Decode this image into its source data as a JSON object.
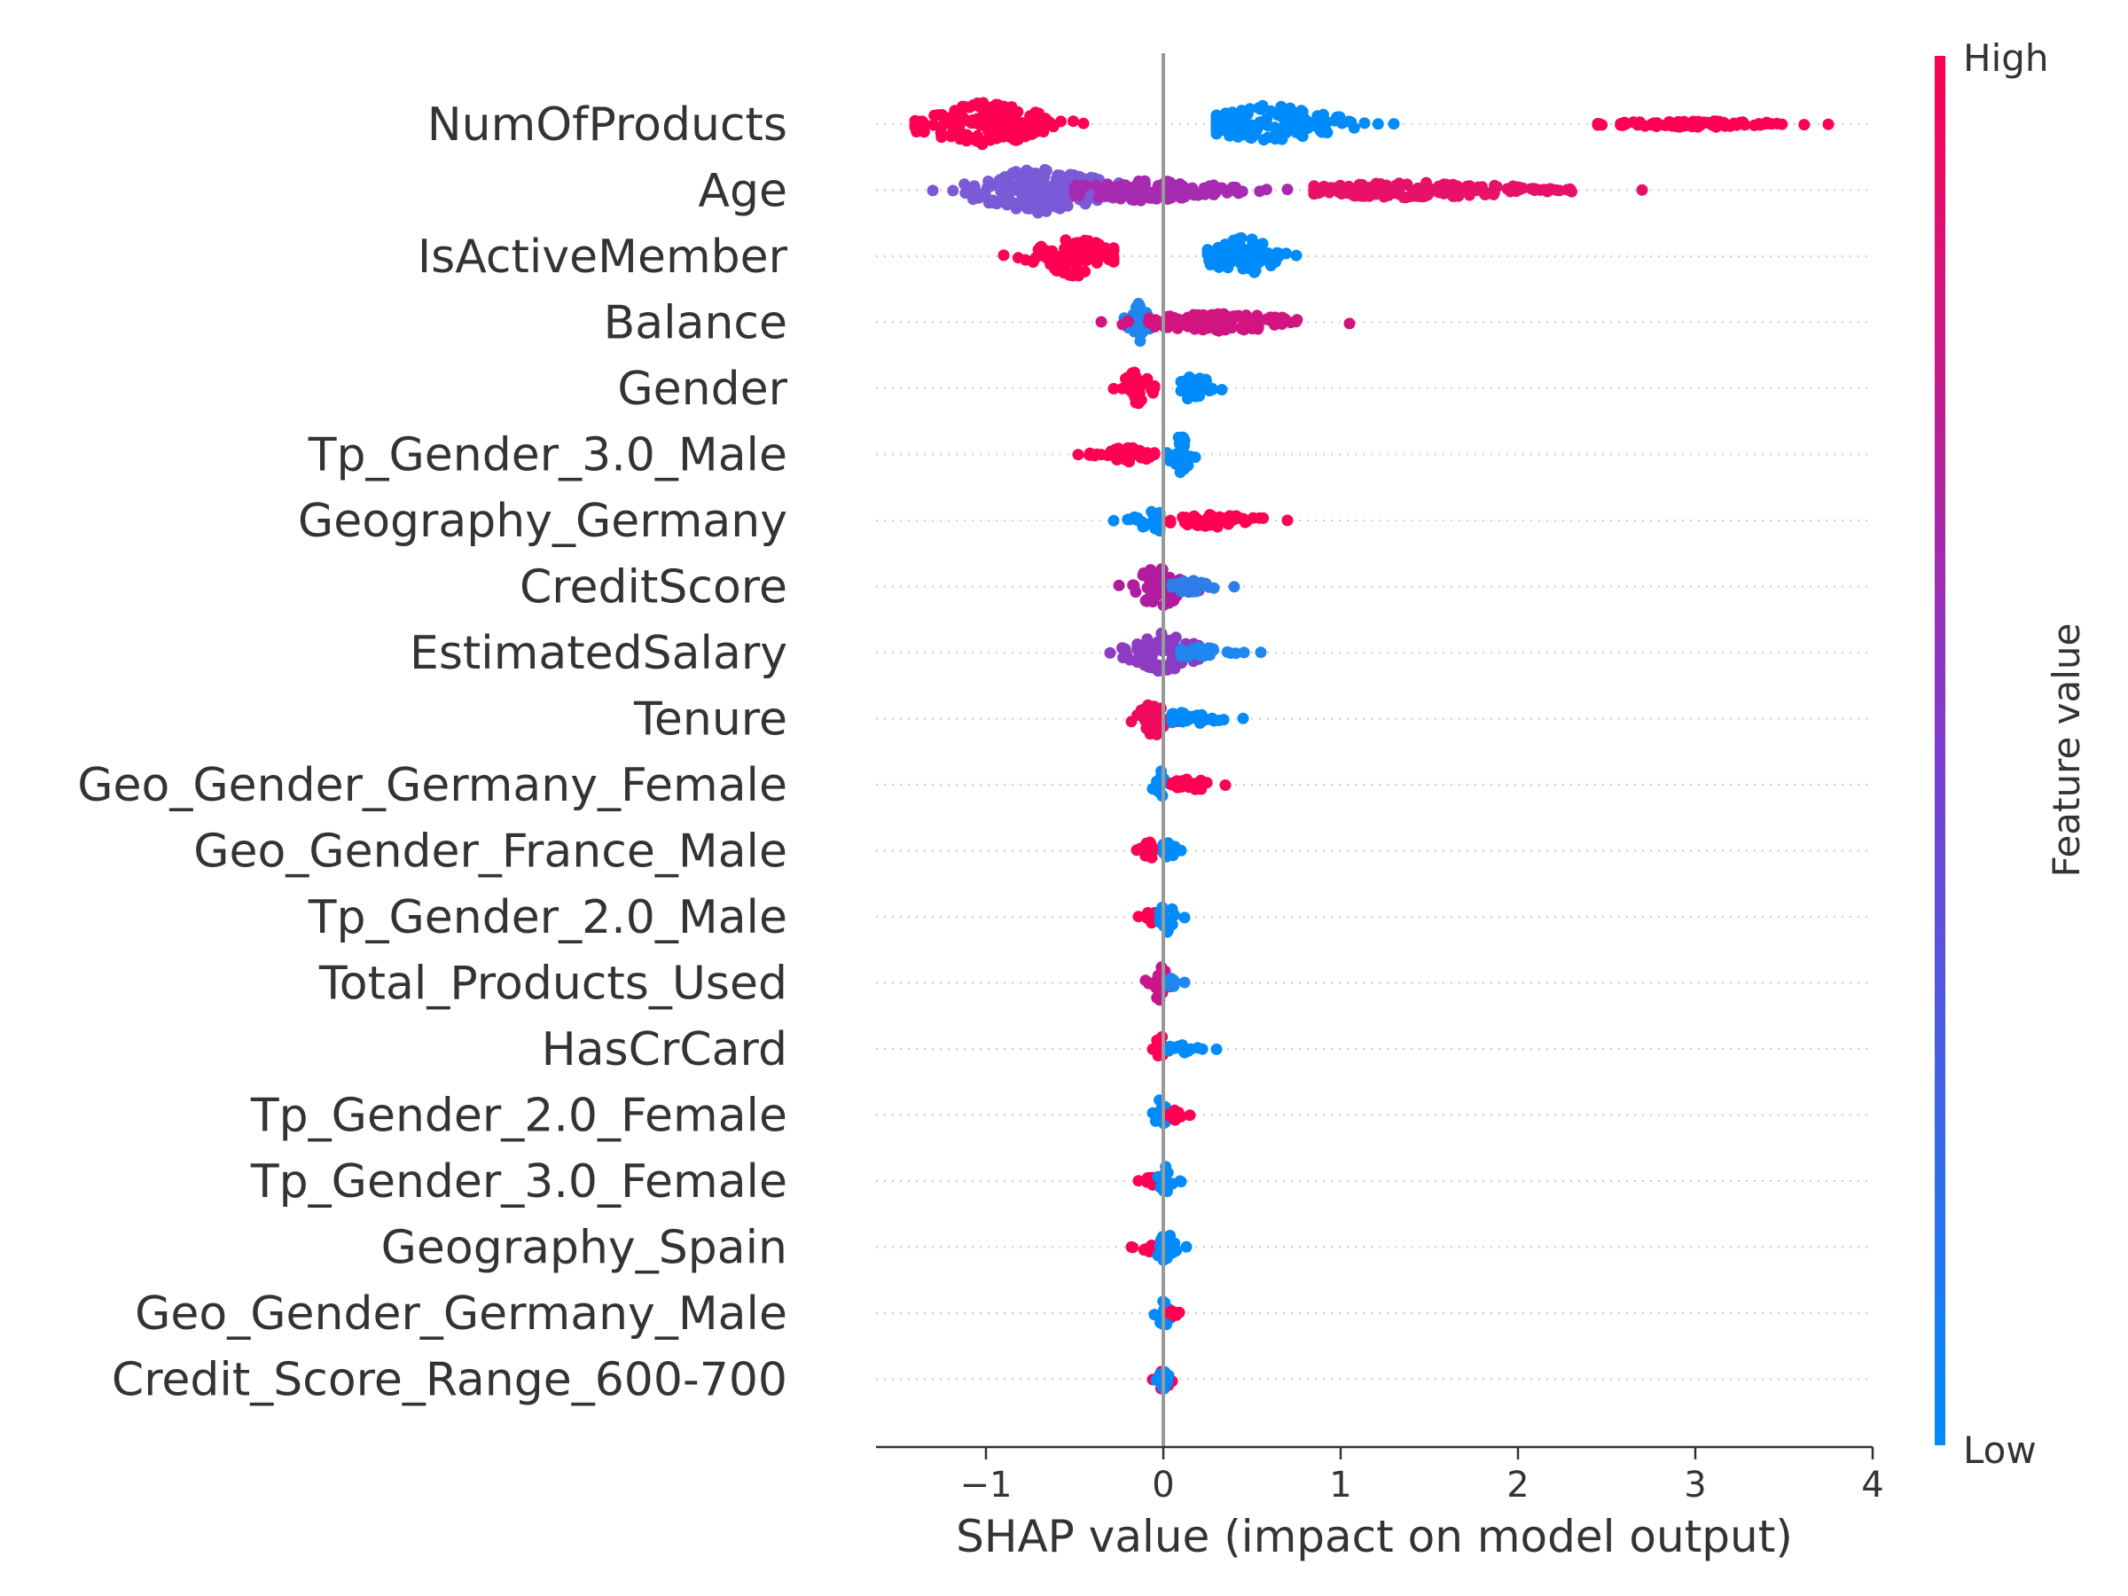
{
  "chart_data": {
    "type": "scatter",
    "subtype": "shap-beeswarm",
    "xlabel": "SHAP value (impact on model output)",
    "xlim": [
      -1.62,
      4.0
    ],
    "xticks": [
      {
        "value": -1,
        "label": "−1"
      },
      {
        "value": 0,
        "label": "0"
      },
      {
        "value": 1,
        "label": "1"
      },
      {
        "value": 2,
        "label": "2"
      },
      {
        "value": 3,
        "label": "3"
      },
      {
        "value": 4,
        "label": "4"
      }
    ],
    "colorbar": {
      "label": "Feature value",
      "high_label": "High",
      "low_label": "Low",
      "high_color": "#ff0052",
      "low_color": "#008bfb"
    },
    "features": [
      {
        "name": "NumOfProducts",
        "groups": [
          {
            "min": -1.4,
            "max": -0.45,
            "center": -1.0,
            "spread": 1.0,
            "color": "#ff0052"
          },
          {
            "min": 0.3,
            "max": 1.3,
            "center": 0.6,
            "spread": 0.85,
            "color": "#008bfb"
          },
          {
            "min": 2.45,
            "max": 3.75,
            "center": 3.0,
            "spread": 0.15,
            "color": "#ff0052"
          }
        ]
      },
      {
        "name": "Age",
        "groups": [
          {
            "min": -1.3,
            "max": -0.25,
            "center": -0.7,
            "spread": 1.0,
            "color": "#7a5ad6"
          },
          {
            "min": -0.5,
            "max": 0.7,
            "center": -0.1,
            "spread": 0.5,
            "color": "#a72bb0"
          },
          {
            "min": 0.85,
            "max": 2.7,
            "center": 1.4,
            "spread": 0.35,
            "color": "#e8116a"
          }
        ]
      },
      {
        "name": "IsActiveMember",
        "groups": [
          {
            "min": -0.9,
            "max": -0.28,
            "center": -0.5,
            "spread": 0.9,
            "color": "#ff0052"
          },
          {
            "min": 0.25,
            "max": 0.75,
            "center": 0.45,
            "spread": 0.9,
            "color": "#008bfb"
          }
        ]
      },
      {
        "name": "Balance",
        "groups": [
          {
            "min": -0.22,
            "max": -0.05,
            "center": -0.15,
            "spread": 1.0,
            "color": "#1e88f0"
          },
          {
            "min": -0.35,
            "max": 1.05,
            "center": 0.3,
            "spread": 0.4,
            "color": "#d1147f"
          }
        ]
      },
      {
        "name": "Gender",
        "groups": [
          {
            "min": -0.28,
            "max": -0.05,
            "center": -0.15,
            "spread": 0.8,
            "color": "#ff0052"
          },
          {
            "min": 0.1,
            "max": 0.33,
            "center": 0.18,
            "spread": 0.7,
            "color": "#008bfb"
          }
        ]
      },
      {
        "name": "Tp_Gender_3.0_Male",
        "groups": [
          {
            "min": -0.48,
            "max": -0.05,
            "center": -0.2,
            "spread": 0.35,
            "color": "#ff0052"
          },
          {
            "min": 0.02,
            "max": 0.18,
            "center": 0.1,
            "spread": 0.9,
            "color": "#008bfb"
          }
        ]
      },
      {
        "name": "Geography_Germany",
        "groups": [
          {
            "min": -0.28,
            "max": -0.02,
            "center": -0.05,
            "spread": 0.55,
            "color": "#008bfb"
          },
          {
            "min": 0.04,
            "max": 0.7,
            "center": 0.3,
            "spread": 0.3,
            "color": "#ff0052"
          }
        ]
      },
      {
        "name": "CreditScore",
        "groups": [
          {
            "min": -0.25,
            "max": 0.2,
            "center": -0.02,
            "spread": 0.9,
            "color": "#b11c9f"
          },
          {
            "min": 0.05,
            "max": 0.4,
            "center": 0.15,
            "spread": 0.3,
            "color": "#2f7de8"
          }
        ]
      },
      {
        "name": "EstimatedSalary",
        "groups": [
          {
            "min": -0.3,
            "max": 0.2,
            "center": 0.0,
            "spread": 0.9,
            "color": "#8c3bc2"
          },
          {
            "min": 0.1,
            "max": 0.55,
            "center": 0.2,
            "spread": 0.25,
            "color": "#1e88f0"
          }
        ]
      },
      {
        "name": "Tenure",
        "groups": [
          {
            "min": -0.18,
            "max": 0.08,
            "center": -0.05,
            "spread": 0.8,
            "color": "#ef0a5e"
          },
          {
            "min": 0.05,
            "max": 0.45,
            "center": 0.15,
            "spread": 0.35,
            "color": "#008bfb"
          }
        ]
      },
      {
        "name": "Geo_Gender_Germany_Female",
        "groups": [
          {
            "min": -0.06,
            "max": 0.03,
            "center": -0.02,
            "spread": 0.7,
            "color": "#008bfb"
          },
          {
            "min": 0.05,
            "max": 0.35,
            "center": 0.15,
            "spread": 0.3,
            "color": "#ff0052"
          }
        ]
      },
      {
        "name": "Geo_Gender_France_Male",
        "groups": [
          {
            "min": -0.15,
            "max": -0.02,
            "center": -0.08,
            "spread": 0.4,
            "color": "#ff0052"
          },
          {
            "min": 0.0,
            "max": 0.1,
            "center": 0.03,
            "spread": 0.6,
            "color": "#008bfb"
          }
        ]
      },
      {
        "name": "Tp_Gender_2.0_Male",
        "groups": [
          {
            "min": -0.14,
            "max": -0.02,
            "center": -0.07,
            "spread": 0.3,
            "color": "#ff0052"
          },
          {
            "min": -0.02,
            "max": 0.12,
            "center": 0.02,
            "spread": 0.7,
            "color": "#008bfb"
          }
        ]
      },
      {
        "name": "Total_Products_Used",
        "groups": [
          {
            "min": -0.1,
            "max": 0.05,
            "center": -0.02,
            "spread": 0.8,
            "color": "#c8168a"
          },
          {
            "min": 0.02,
            "max": 0.12,
            "center": 0.04,
            "spread": 0.3,
            "color": "#1e88f0"
          }
        ]
      },
      {
        "name": "HasCrCard",
        "groups": [
          {
            "min": -0.06,
            "max": 0.04,
            "center": -0.01,
            "spread": 0.65,
            "color": "#ff0052"
          },
          {
            "min": 0.03,
            "max": 0.3,
            "center": 0.1,
            "spread": 0.2,
            "color": "#008bfb"
          }
        ]
      },
      {
        "name": "Tp_Gender_2.0_Female",
        "groups": [
          {
            "min": -0.06,
            "max": 0.05,
            "center": -0.01,
            "spread": 0.8,
            "color": "#008bfb"
          },
          {
            "min": 0.02,
            "max": 0.15,
            "center": 0.07,
            "spread": 0.25,
            "color": "#ff0052"
          }
        ]
      },
      {
        "name": "Tp_Gender_3.0_Female",
        "groups": [
          {
            "min": -0.14,
            "max": -0.02,
            "center": -0.07,
            "spread": 0.25,
            "color": "#ff0052"
          },
          {
            "min": -0.03,
            "max": 0.1,
            "center": 0.01,
            "spread": 0.75,
            "color": "#008bfb"
          }
        ]
      },
      {
        "name": "Geography_Spain",
        "groups": [
          {
            "min": -0.18,
            "max": -0.02,
            "center": -0.08,
            "spread": 0.25,
            "color": "#ff0052"
          },
          {
            "min": -0.03,
            "max": 0.13,
            "center": 0.02,
            "spread": 0.75,
            "color": "#008bfb"
          }
        ]
      },
      {
        "name": "Geo_Gender_Germany_Male",
        "groups": [
          {
            "min": -0.05,
            "max": 0.04,
            "center": 0.0,
            "spread": 0.8,
            "color": "#008bfb"
          },
          {
            "min": 0.03,
            "max": 0.09,
            "center": 0.06,
            "spread": 0.15,
            "color": "#ff0052"
          }
        ]
      },
      {
        "name": "Credit_Score_Range_600-700",
        "groups": [
          {
            "min": -0.06,
            "max": 0.05,
            "center": 0.0,
            "spread": 0.5,
            "color": "#ff0052"
          },
          {
            "min": -0.04,
            "max": 0.03,
            "center": 0.0,
            "spread": 0.6,
            "color": "#008bfb"
          }
        ]
      }
    ]
  }
}
